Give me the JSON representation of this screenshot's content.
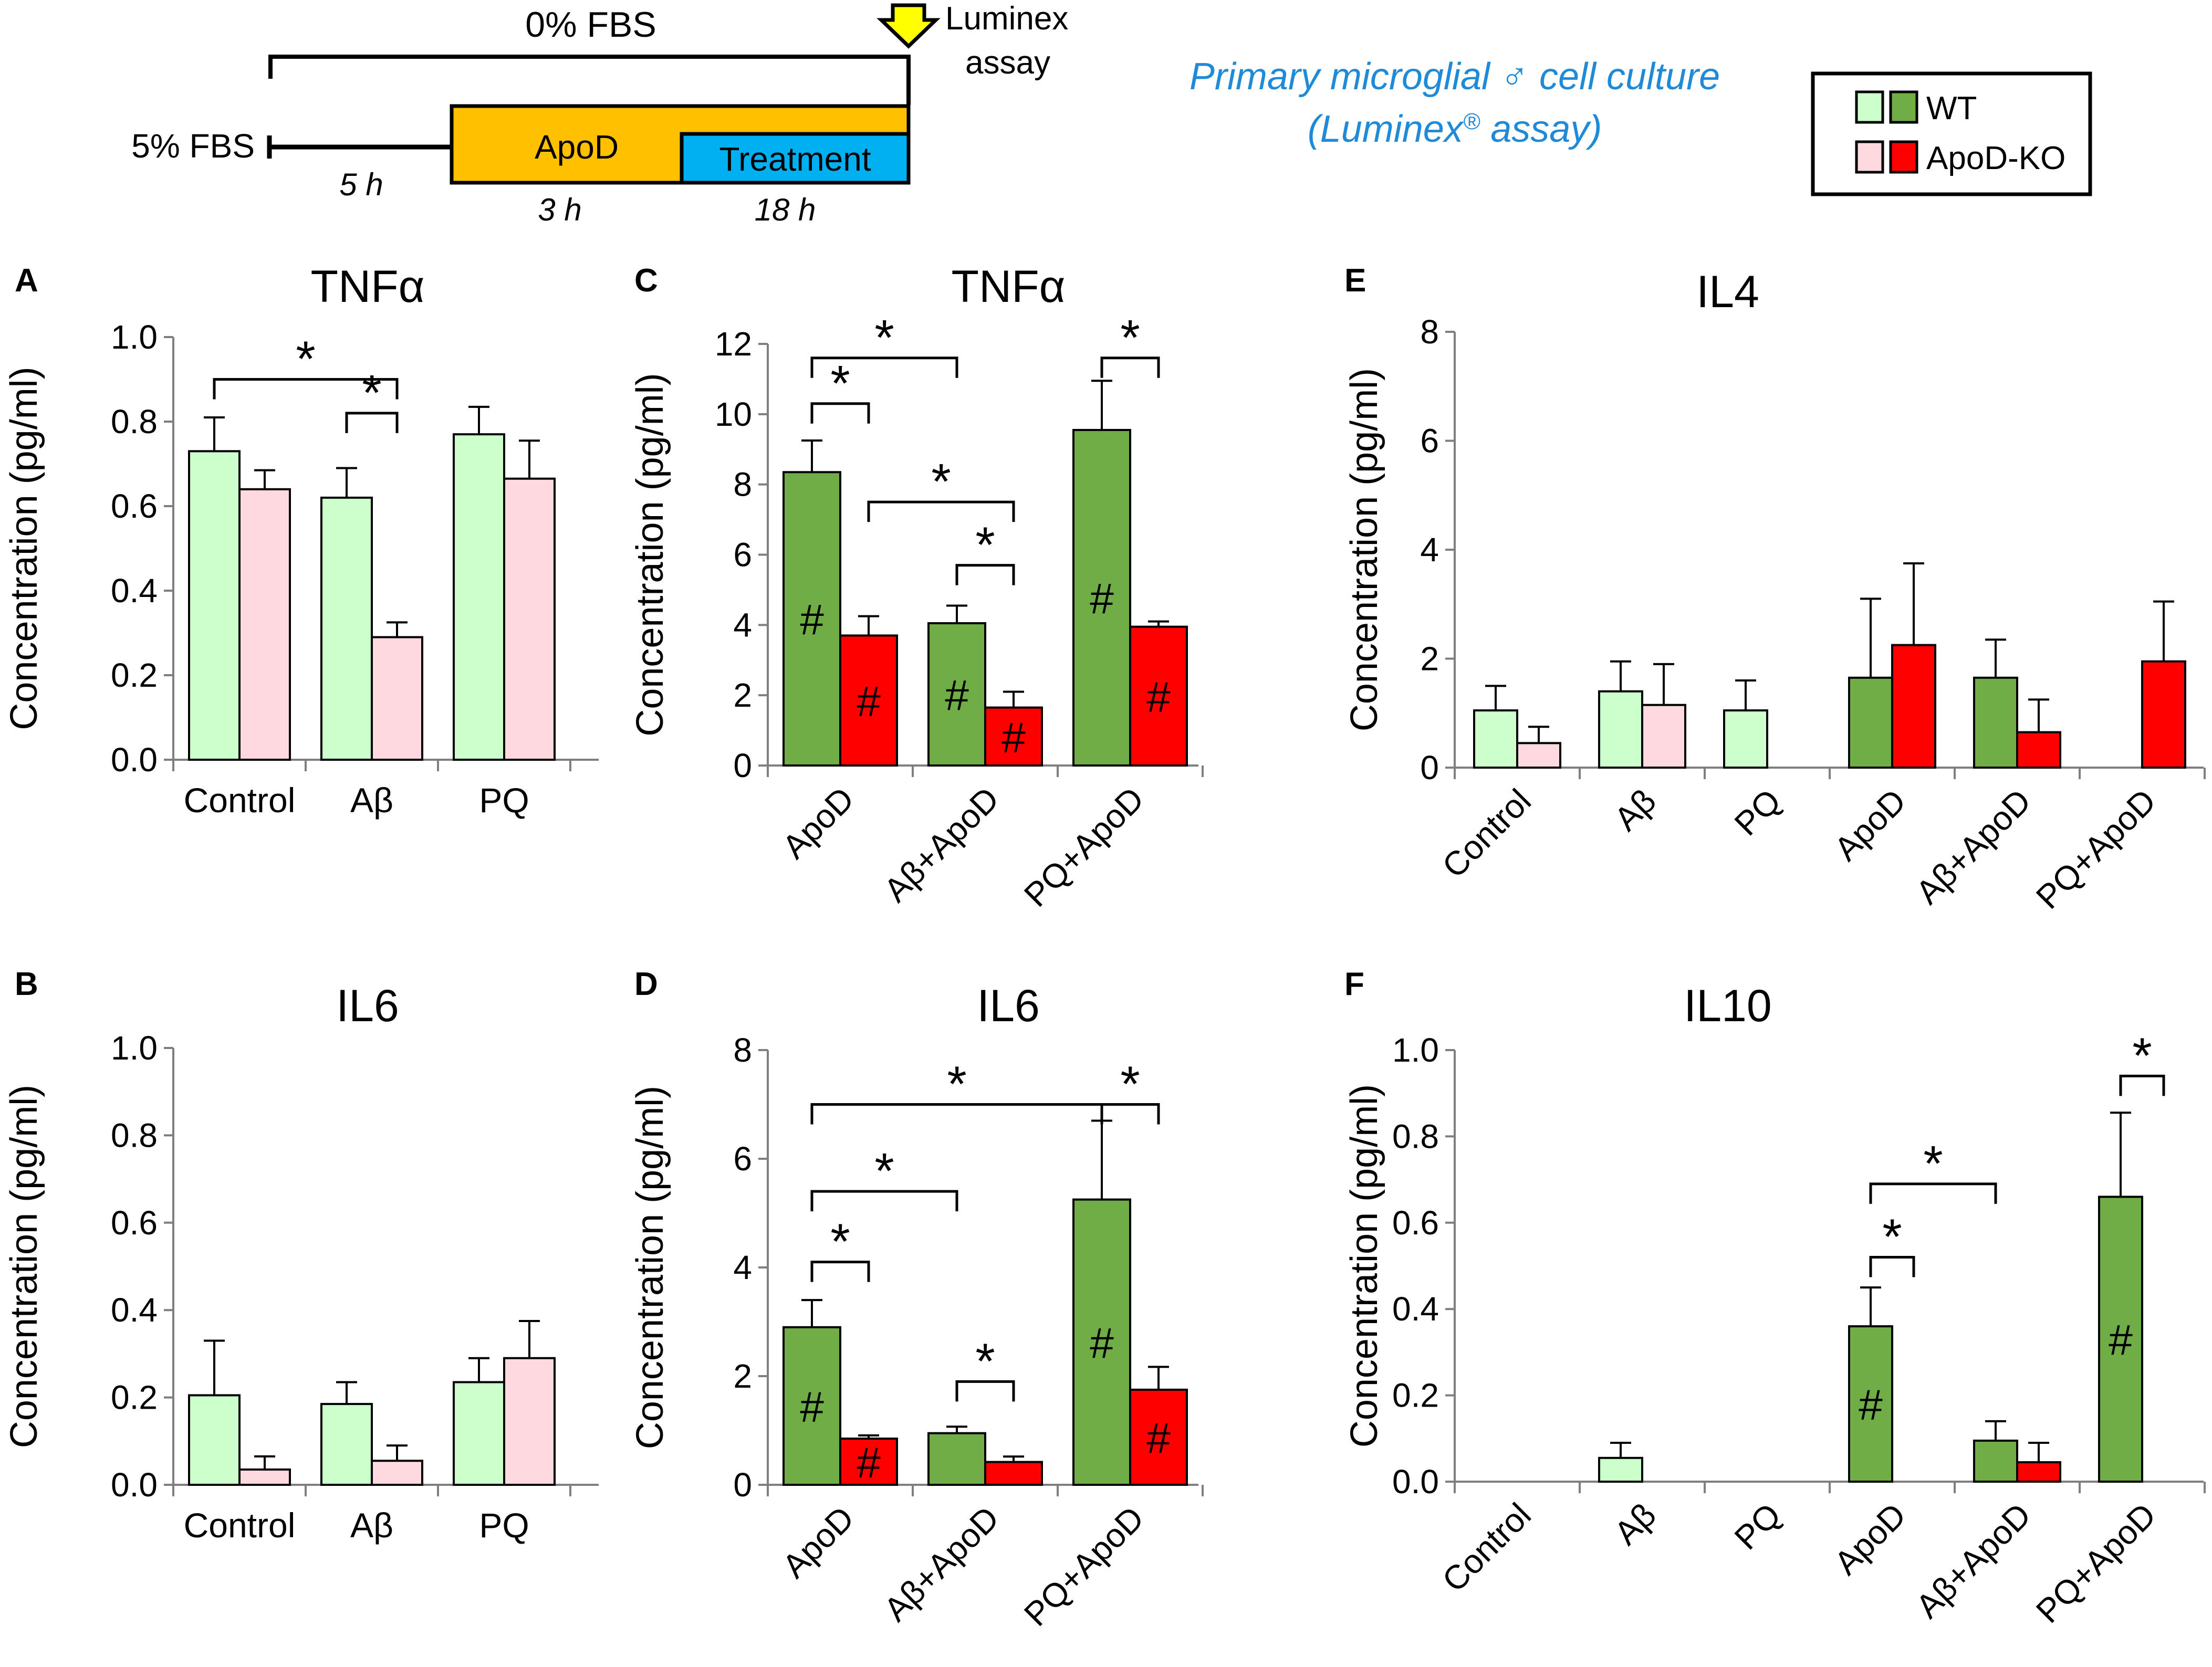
{
  "header": {
    "top_label": "0% FBS",
    "left_label": "5% FBS",
    "arrow_label_line1": "Luminex",
    "arrow_label_line2": "assay",
    "box1_label": "ApoD",
    "box2_label": "Treatment",
    "dur1": "5 h",
    "dur2": "3 h",
    "dur3": "18 h",
    "subtitle_line1": "Primary microglial ♂ cell culture",
    "subtitle_line2_pre": "(Luminex",
    "subtitle_line2_sup": "®",
    "subtitle_line2_post": " assay)"
  },
  "legend": {
    "entries": [
      {
        "name": "WT",
        "light": "#ccffcc",
        "dark": "#70ad47"
      },
      {
        "name": "ApoD-KO",
        "light": "#ffd9e0",
        "dark": "#ff0000"
      }
    ]
  },
  "colors": {
    "wt_light": "#ccffcc",
    "ko_light": "#ffd9e0",
    "wt_dark": "#70ad47",
    "ko_dark": "#ff0000",
    "title_blue": "#1f8ad8"
  },
  "chart_data": [
    {
      "panel": "A",
      "type": "bar",
      "title": "TNFα",
      "ylabel": "Concentration (pg/ml)",
      "ylim": [
        0,
        1.0
      ],
      "yticks": [
        "0.0",
        "0.2",
        "0.4",
        "0.6",
        "0.8",
        "1.0"
      ],
      "categories": [
        "Control",
        "Aβ",
        "PQ"
      ],
      "rotate_xticks": false,
      "series": [
        {
          "name": "WT",
          "style": "wt_light",
          "values": [
            0.73,
            0.62,
            0.77
          ],
          "errors": [
            0.08,
            0.07,
            0.065
          ],
          "marks": [
            "",
            "",
            ""
          ]
        },
        {
          "name": "ApoD-KO",
          "style": "ko_light",
          "values": [
            0.64,
            0.29,
            0.665
          ],
          "errors": [
            0.045,
            0.035,
            0.09
          ],
          "marks": [
            "",
            "",
            ""
          ]
        }
      ],
      "significance": [
        {
          "from": [
            0,
            0
          ],
          "to": [
            1,
            1
          ],
          "level": 0.9,
          "label": "*"
        },
        {
          "from": [
            1,
            0
          ],
          "to": [
            1,
            1
          ],
          "level": 0.82,
          "label": "*"
        }
      ]
    },
    {
      "panel": "B",
      "type": "bar",
      "title": "IL6",
      "ylabel": "Concentration (pg/ml)",
      "ylim": [
        0,
        1.0
      ],
      "yticks": [
        "0.0",
        "0.2",
        "0.4",
        "0.6",
        "0.8",
        "1.0"
      ],
      "categories": [
        "Control",
        "Aβ",
        "PQ"
      ],
      "rotate_xticks": false,
      "series": [
        {
          "name": "WT",
          "style": "wt_light",
          "values": [
            0.205,
            0.185,
            0.235
          ],
          "errors": [
            0.125,
            0.05,
            0.055
          ],
          "marks": [
            "",
            "",
            ""
          ]
        },
        {
          "name": "ApoD-KO",
          "style": "ko_light",
          "values": [
            0.035,
            0.055,
            0.29
          ],
          "errors": [
            0.03,
            0.035,
            0.085
          ],
          "marks": [
            "",
            "",
            ""
          ]
        }
      ],
      "significance": []
    },
    {
      "panel": "C",
      "type": "bar",
      "title": "TNFα",
      "ylabel": "Concentration (pg/ml)",
      "ylim": [
        0,
        12
      ],
      "yticks": [
        "0",
        "2",
        "4",
        "6",
        "8",
        "10",
        "12"
      ],
      "categories": [
        "ApoD",
        "Aβ+ApoD",
        "PQ+ApoD"
      ],
      "rotate_xticks": true,
      "series": [
        {
          "name": "WT",
          "style": "wt_dark",
          "values": [
            8.35,
            4.05,
            9.55
          ],
          "errors": [
            0.9,
            0.5,
            1.4
          ],
          "marks": [
            "#",
            "#",
            "#"
          ]
        },
        {
          "name": "ApoD-KO",
          "style": "ko_dark",
          "values": [
            3.7,
            1.65,
            3.95
          ],
          "errors": [
            0.55,
            0.45,
            0.15
          ],
          "marks": [
            "#",
            "#",
            "#"
          ]
        }
      ],
      "significance": [
        {
          "from": [
            0,
            0
          ],
          "to": [
            1,
            0
          ],
          "level": 11.6,
          "label": "*"
        },
        {
          "from": [
            0,
            0
          ],
          "to": [
            0,
            1
          ],
          "level": 10.3,
          "label": "*"
        },
        {
          "from": [
            0,
            1
          ],
          "to": [
            1,
            1
          ],
          "level": 7.5,
          "label": "*"
        },
        {
          "from": [
            1,
            0
          ],
          "to": [
            1,
            1
          ],
          "level": 5.7,
          "label": "*"
        },
        {
          "from": [
            2,
            0
          ],
          "to": [
            2,
            1
          ],
          "level": 11.6,
          "label": "*"
        }
      ]
    },
    {
      "panel": "D",
      "type": "bar",
      "title": "IL6",
      "ylabel": "Concentration (pg/ml)",
      "ylim": [
        0,
        8
      ],
      "yticks": [
        "0",
        "2",
        "4",
        "6",
        "8"
      ],
      "categories": [
        "ApoD",
        "Aβ+ApoD",
        "PQ+ApoD"
      ],
      "rotate_xticks": true,
      "series": [
        {
          "name": "WT",
          "style": "wt_dark",
          "values": [
            2.9,
            0.95,
            5.25
          ],
          "errors": [
            0.5,
            0.12,
            1.45
          ],
          "marks": [
            "#",
            "",
            "#"
          ]
        },
        {
          "name": "ApoD-KO",
          "style": "ko_dark",
          "values": [
            0.85,
            0.42,
            1.75
          ],
          "errors": [
            0.06,
            0.1,
            0.42
          ],
          "marks": [
            "#",
            "",
            "#"
          ]
        }
      ],
      "significance": [
        {
          "from": [
            0,
            0
          ],
          "to": [
            2,
            0
          ],
          "level": 7.0,
          "label": "*"
        },
        {
          "from": [
            2,
            0
          ],
          "to": [
            2,
            1
          ],
          "level": 7.0,
          "label": "*"
        },
        {
          "from": [
            0,
            0
          ],
          "to": [
            1,
            0
          ],
          "level": 5.4,
          "label": "*"
        },
        {
          "from": [
            0,
            0
          ],
          "to": [
            0,
            1
          ],
          "level": 4.1,
          "label": "*"
        },
        {
          "from": [
            1,
            0
          ],
          "to": [
            1,
            1
          ],
          "level": 1.9,
          "label": "*"
        }
      ]
    },
    {
      "panel": "E",
      "type": "bar",
      "title": "IL4",
      "ylabel": "Concentration (pg/ml)",
      "ylim": [
        0,
        8
      ],
      "yticks": [
        "0",
        "2",
        "4",
        "6",
        "8"
      ],
      "categories": [
        "Control",
        "Aβ",
        "PQ",
        "ApoD",
        "Aβ+ApoD",
        "PQ+ApoD"
      ],
      "rotate_xticks": true,
      "series": [
        {
          "name": "WT",
          "styles": [
            "wt_light",
            "wt_light",
            "wt_light",
            "wt_dark",
            "wt_dark",
            "wt_dark"
          ],
          "values": [
            1.05,
            1.4,
            1.05,
            1.65,
            1.65,
            0
          ],
          "errors": [
            0.45,
            0.55,
            0.55,
            1.45,
            0.7,
            0
          ],
          "marks": [
            "",
            "",
            "",
            "",
            "",
            ""
          ]
        },
        {
          "name": "ApoD-KO",
          "styles": [
            "ko_light",
            "ko_light",
            "ko_light",
            "ko_dark",
            "ko_dark",
            "ko_dark"
          ],
          "values": [
            0.45,
            1.15,
            0,
            2.25,
            0.65,
            1.95
          ],
          "errors": [
            0.3,
            0.75,
            0,
            1.5,
            0.6,
            1.1
          ],
          "marks": [
            "",
            "",
            "",
            "",
            "",
            ""
          ]
        }
      ],
      "significance": []
    },
    {
      "panel": "F",
      "type": "bar",
      "title": "IL10",
      "ylabel": "Concentration (pg/ml)",
      "ylim": [
        0,
        1.0
      ],
      "yticks": [
        "0.0",
        "0.2",
        "0.4",
        "0.6",
        "0.8",
        "1.0"
      ],
      "categories": [
        "Control",
        "Aβ",
        "PQ",
        "ApoD",
        "Aβ+ApoD",
        "PQ+ApoD"
      ],
      "rotate_xticks": true,
      "series": [
        {
          "name": "WT",
          "styles": [
            "wt_light",
            "wt_light",
            "wt_light",
            "wt_dark",
            "wt_dark",
            "wt_dark"
          ],
          "values": [
            0,
            0.055,
            0,
            0.36,
            0.095,
            0.66
          ],
          "errors": [
            0,
            0.035,
            0,
            0.09,
            0.045,
            0.195
          ],
          "marks": [
            "",
            "",
            "",
            "#",
            "",
            "#"
          ]
        },
        {
          "name": "ApoD-KO",
          "styles": [
            "ko_light",
            "ko_light",
            "ko_light",
            "ko_dark",
            "ko_dark",
            "ko_dark"
          ],
          "values": [
            0,
            0,
            0,
            0,
            0.045,
            0
          ],
          "errors": [
            0,
            0,
            0,
            0,
            0.045,
            0
          ],
          "marks": [
            "",
            "",
            "",
            "",
            "",
            ""
          ]
        }
      ],
      "significance": [
        {
          "from": [
            3,
            0
          ],
          "to": [
            4,
            0
          ],
          "level": 0.69,
          "label": "*"
        },
        {
          "from": [
            3,
            0
          ],
          "to": [
            3,
            1
          ],
          "level": 0.52,
          "label": "*"
        },
        {
          "from": [
            5,
            0
          ],
          "to": [
            5,
            1
          ],
          "level": 0.94,
          "label": "*"
        }
      ]
    }
  ]
}
